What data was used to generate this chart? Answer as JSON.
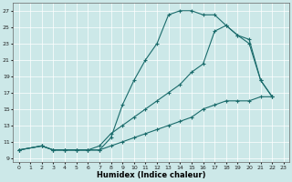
{
  "xlabel": "Humidex (Indice chaleur)",
  "background_color": "#cce8e8",
  "grid_color": "#ffffff",
  "line_color": "#1a6b6b",
  "xlim": [
    -0.5,
    23.5
  ],
  "ylim": [
    8.5,
    28.0
  ],
  "yticks": [
    9,
    11,
    13,
    15,
    17,
    19,
    21,
    23,
    25,
    27
  ],
  "xticks": [
    0,
    1,
    2,
    3,
    4,
    5,
    6,
    7,
    8,
    9,
    10,
    11,
    12,
    13,
    14,
    15,
    16,
    17,
    18,
    19,
    20,
    21,
    22,
    23
  ],
  "line1_x": [
    0,
    2,
    3,
    4,
    5,
    6,
    7,
    8,
    9,
    10,
    11,
    12,
    13,
    14,
    15,
    16,
    17,
    18,
    19,
    20,
    21,
    22
  ],
  "line1_y": [
    10,
    10.5,
    10.0,
    10.0,
    10.0,
    10.0,
    10.0,
    11.5,
    15.5,
    18.5,
    21.0,
    23.0,
    26.5,
    27.0,
    27.0,
    26.5,
    26.5,
    25.2,
    24.0,
    23.0,
    18.5,
    16.5
  ],
  "line2_x": [
    0,
    2,
    3,
    4,
    5,
    6,
    7,
    8,
    9,
    10,
    11,
    12,
    13,
    14,
    15,
    16,
    17,
    18,
    19,
    20,
    21,
    22
  ],
  "line2_y": [
    10,
    10.5,
    10.0,
    10.0,
    10.0,
    10.0,
    10.5,
    12.0,
    13.0,
    14.0,
    15.0,
    16.0,
    17.0,
    18.0,
    19.5,
    20.5,
    24.5,
    25.2,
    24.0,
    23.5,
    18.5,
    16.5
  ],
  "line3_x": [
    0,
    2,
    3,
    4,
    5,
    6,
    7,
    8,
    9,
    10,
    11,
    12,
    13,
    14,
    15,
    16,
    17,
    18,
    19,
    20,
    21,
    22
  ],
  "line3_y": [
    10,
    10.5,
    10.0,
    10.0,
    10.0,
    10.0,
    10.0,
    10.5,
    11.0,
    11.5,
    12.0,
    12.5,
    13.0,
    13.5,
    14.0,
    15.0,
    15.5,
    16.0,
    16.0,
    16.0,
    16.5,
    16.5
  ]
}
